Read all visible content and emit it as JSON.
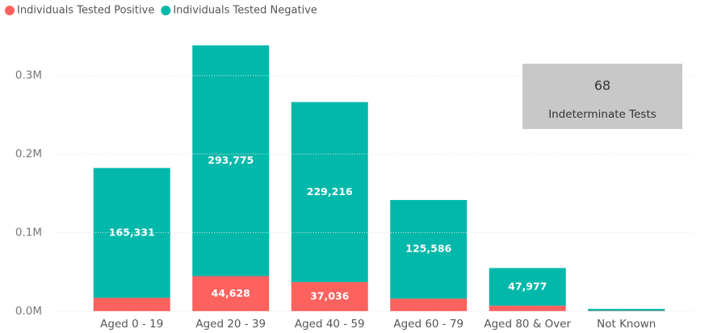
{
  "chart_data": {
    "type": "stacked_bar",
    "categories": [
      "Aged 0 - 19",
      "Aged 20 - 39",
      "Aged 40 - 59",
      "Aged 60 - 79",
      "Aged 80 & Over",
      "Not Known"
    ],
    "series": [
      {
        "name": "Individuals Tested Positive",
        "color": "#fd625e",
        "values": [
          17000,
          44628,
          37036,
          16000,
          7000,
          500
        ],
        "value_labels": [
          null,
          "44,628",
          "37,036",
          null,
          null,
          null
        ]
      },
      {
        "name": "Individuals Tested Negative",
        "color": "#01b8aa",
        "values": [
          165331,
          293775,
          229216,
          125586,
          47977,
          2500
        ],
        "value_labels": [
          "165,331",
          "293,775",
          "229,216",
          "125,586",
          "47,977",
          null
        ]
      }
    ],
    "ylim": [
      0,
      350000
    ],
    "yticks": [
      {
        "value": 0,
        "label": "0.0M"
      },
      {
        "value": 100000,
        "label": "0.1M"
      },
      {
        "value": 200000,
        "label": "0.2M"
      },
      {
        "value": 300000,
        "label": "0.3M"
      }
    ],
    "grid": true,
    "legend": "top-left"
  },
  "card": {
    "value": 68,
    "label": "Indeterminate Tests"
  }
}
